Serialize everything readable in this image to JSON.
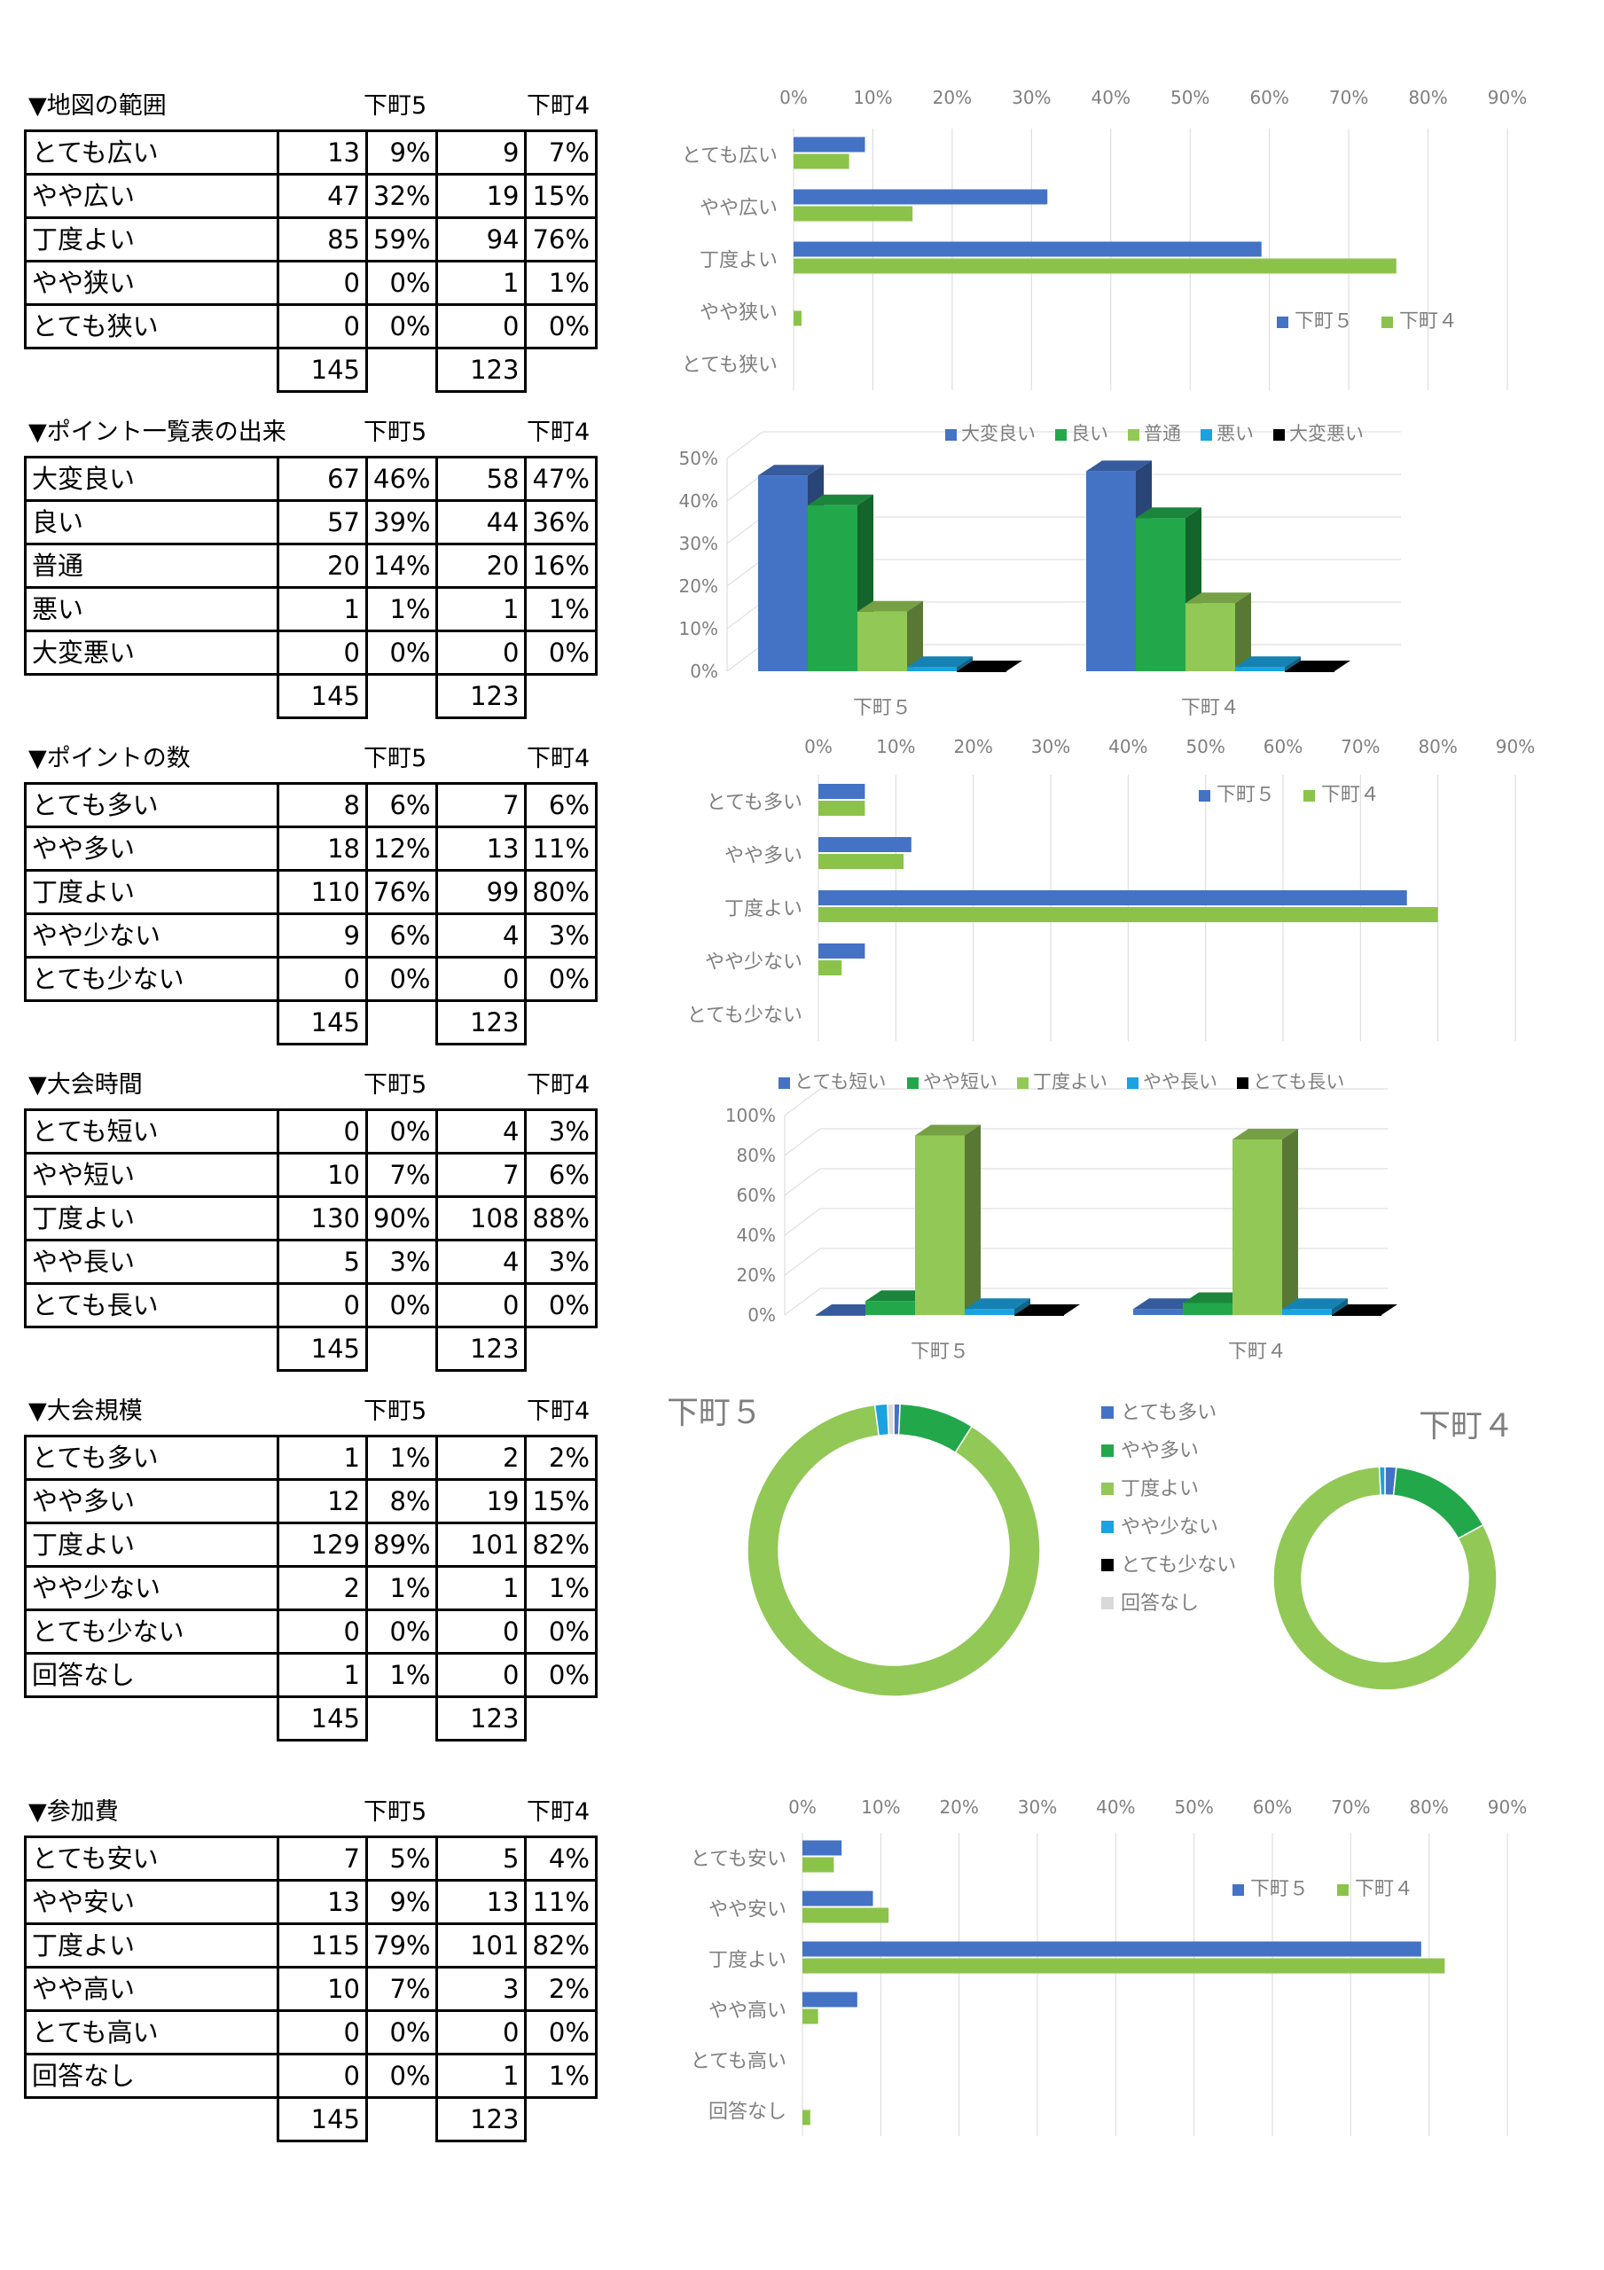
{
  "colors": {
    "s5": "#4472c4",
    "s4": "#8bc34a",
    "dg": "#22a84a",
    "lg": "#92c856",
    "cy": "#1aa3e0",
    "bk": "#000000",
    "lb": "#5b9bd5",
    "ltgray": "#d9d9d9",
    "grid": "#d9d9d9"
  },
  "sections": [
    {
      "title": "▼地図の範囲",
      "col1": "下町5",
      "col2": "下町4",
      "rows": [
        {
          "label": "とても広い",
          "n1": "13",
          "p1": "9%",
          "n2": "9",
          "p2": "7%"
        },
        {
          "label": "やや広い",
          "n1": "47",
          "p1": "32%",
          "n2": "19",
          "p2": "15%"
        },
        {
          "label": "丁度よい",
          "n1": "85",
          "p1": "59%",
          "n2": "94",
          "p2": "76%"
        },
        {
          "label": "やや狭い",
          "n1": "0",
          "p1": "0%",
          "n2": "1",
          "p2": "1%"
        },
        {
          "label": "とても狭い",
          "n1": "0",
          "p1": "0%",
          "n2": "0",
          "p2": "0%"
        }
      ],
      "total1": "145",
      "total2": "123"
    },
    {
      "title": "▼ポイント一覧表の出来",
      "col1": "下町5",
      "col2": "下町4",
      "rows": [
        {
          "label": "大変良い",
          "n1": "67",
          "p1": "46%",
          "n2": "58",
          "p2": "47%"
        },
        {
          "label": "良い",
          "n1": "57",
          "p1": "39%",
          "n2": "44",
          "p2": "36%"
        },
        {
          "label": "普通",
          "n1": "20",
          "p1": "14%",
          "n2": "20",
          "p2": "16%"
        },
        {
          "label": "悪い",
          "n1": "1",
          "p1": "1%",
          "n2": "1",
          "p2": "1%"
        },
        {
          "label": "大変悪い",
          "n1": "0",
          "p1": "0%",
          "n2": "0",
          "p2": "0%"
        }
      ],
      "total1": "145",
      "total2": "123"
    },
    {
      "title": "▼ポイントの数",
      "col1": "下町5",
      "col2": "下町4",
      "rows": [
        {
          "label": "とても多い",
          "n1": "8",
          "p1": "6%",
          "n2": "7",
          "p2": "6%"
        },
        {
          "label": "やや多い",
          "n1": "18",
          "p1": "12%",
          "n2": "13",
          "p2": "11%"
        },
        {
          "label": "丁度よい",
          "n1": "110",
          "p1": "76%",
          "n2": "99",
          "p2": "80%"
        },
        {
          "label": "やや少ない",
          "n1": "9",
          "p1": "6%",
          "n2": "4",
          "p2": "3%"
        },
        {
          "label": "とても少ない",
          "n1": "0",
          "p1": "0%",
          "n2": "0",
          "p2": "0%"
        }
      ],
      "total1": "145",
      "total2": "123"
    },
    {
      "title": "▼大会時間",
      "col1": "下町5",
      "col2": "下町4",
      "rows": [
        {
          "label": "とても短い",
          "n1": "0",
          "p1": "0%",
          "n2": "4",
          "p2": "3%"
        },
        {
          "label": "やや短い",
          "n1": "10",
          "p1": "7%",
          "n2": "7",
          "p2": "6%"
        },
        {
          "label": "丁度よい",
          "n1": "130",
          "p1": "90%",
          "n2": "108",
          "p2": "88%"
        },
        {
          "label": "やや長い",
          "n1": "5",
          "p1": "3%",
          "n2": "4",
          "p2": "3%"
        },
        {
          "label": "とても長い",
          "n1": "0",
          "p1": "0%",
          "n2": "0",
          "p2": "0%"
        }
      ],
      "total1": "145",
      "total2": "123"
    },
    {
      "title": "▼大会規模",
      "col1": "下町5",
      "col2": "下町4",
      "rows": [
        {
          "label": "とても多い",
          "n1": "1",
          "p1": "1%",
          "n2": "2",
          "p2": "2%"
        },
        {
          "label": "やや多い",
          "n1": "12",
          "p1": "8%",
          "n2": "19",
          "p2": "15%"
        },
        {
          "label": "丁度よい",
          "n1": "129",
          "p1": "89%",
          "n2": "101",
          "p2": "82%"
        },
        {
          "label": "やや少ない",
          "n1": "2",
          "p1": "1%",
          "n2": "1",
          "p2": "1%"
        },
        {
          "label": "とても少ない",
          "n1": "0",
          "p1": "0%",
          "n2": "0",
          "p2": "0%"
        },
        {
          "label": "回答なし",
          "n1": "1",
          "p1": "1%",
          "n2": "0",
          "p2": "0%"
        }
      ],
      "total1": "145",
      "total2": "123"
    },
    {
      "title": "▼参加費",
      "col1": "下町5",
      "col2": "下町4",
      "rows": [
        {
          "label": "とても安い",
          "n1": "7",
          "p1": "5%",
          "n2": "5",
          "p2": "4%"
        },
        {
          "label": "やや安い",
          "n1": "13",
          "p1": "9%",
          "n2": "13",
          "p2": "11%"
        },
        {
          "label": "丁度よい",
          "n1": "115",
          "p1": "79%",
          "n2": "101",
          "p2": "82%"
        },
        {
          "label": "やや高い",
          "n1": "10",
          "p1": "7%",
          "n2": "3",
          "p2": "2%"
        },
        {
          "label": "とても高い",
          "n1": "0",
          "p1": "0%",
          "n2": "0",
          "p2": "0%"
        },
        {
          "label": "回答なし",
          "n1": "0",
          "p1": "0%",
          "n2": "1",
          "p2": "1%"
        }
      ],
      "total1": "145",
      "total2": "123"
    }
  ],
  "chart_data": [
    {
      "type": "bar",
      "orientation": "horizontal",
      "categories": [
        "とても広い",
        "やや広い",
        "丁度よい",
        "やや狭い",
        "とても狭い"
      ],
      "series": [
        {
          "name": "下町５",
          "values": [
            9,
            32,
            59,
            0,
            0
          ]
        },
        {
          "name": "下町４",
          "values": [
            7,
            15,
            76,
            1,
            0
          ]
        }
      ],
      "xticks": [
        "0%",
        "10%",
        "20%",
        "30%",
        "40%",
        "50%",
        "60%",
        "70%",
        "80%",
        "90%"
      ],
      "xlim": [
        0,
        90
      ],
      "legend": "right"
    },
    {
      "type": "bar",
      "orientation": "vertical-3d",
      "categories": [
        "下町５",
        "下町４"
      ],
      "series": [
        {
          "name": "大変良い",
          "values": [
            46,
            47
          ]
        },
        {
          "name": "良い",
          "values": [
            39,
            36
          ]
        },
        {
          "name": "普通",
          "values": [
            14,
            16
          ]
        },
        {
          "name": "悪い",
          "values": [
            1,
            1
          ]
        },
        {
          "name": "大変悪い",
          "values": [
            0,
            0
          ]
        }
      ],
      "yticks": [
        "50%",
        "40%",
        "30%",
        "20%",
        "10%",
        "0%"
      ],
      "ylim": [
        0,
        50
      ],
      "legend": "top"
    },
    {
      "type": "bar",
      "orientation": "horizontal",
      "categories": [
        "とても多い",
        "やや多い",
        "丁度よい",
        "やや少ない",
        "とても少ない"
      ],
      "series": [
        {
          "name": "下町５",
          "values": [
            6,
            12,
            76,
            6,
            0
          ]
        },
        {
          "name": "下町４",
          "values": [
            6,
            11,
            80,
            3,
            0
          ]
        }
      ],
      "xticks": [
        "0%",
        "10%",
        "20%",
        "30%",
        "40%",
        "50%",
        "60%",
        "70%",
        "80%",
        "90%"
      ],
      "xlim": [
        0,
        90
      ],
      "legend": "top-right"
    },
    {
      "type": "bar",
      "orientation": "vertical-3d",
      "categories": [
        "下町５",
        "下町４"
      ],
      "series": [
        {
          "name": "とても短い",
          "values": [
            0,
            3
          ]
        },
        {
          "name": "やや短い",
          "values": [
            7,
            6
          ]
        },
        {
          "name": "丁度よい",
          "values": [
            90,
            88
          ]
        },
        {
          "name": "やや長い",
          "values": [
            3,
            3
          ]
        },
        {
          "name": "とても長い",
          "values": [
            0,
            0
          ]
        }
      ],
      "yticks": [
        "100%",
        "80%",
        "60%",
        "40%",
        "20%",
        "0%"
      ],
      "ylim": [
        0,
        100
      ],
      "legend": "top"
    },
    {
      "type": "pie",
      "style": "doughnut",
      "titles": [
        "下町５",
        "下町４"
      ],
      "categories": [
        "とても多い",
        "やや多い",
        "丁度よい",
        "やや少ない",
        "とても少ない",
        "回答なし"
      ],
      "series": [
        {
          "name": "下町５",
          "values": [
            1,
            12,
            129,
            2,
            0,
            1
          ]
        },
        {
          "name": "下町４",
          "values": [
            2,
            19,
            101,
            1,
            0,
            0
          ]
        }
      ],
      "legend": "middle"
    },
    {
      "type": "bar",
      "orientation": "horizontal",
      "categories": [
        "とても安い",
        "やや安い",
        "丁度よい",
        "やや高い",
        "とても高い",
        "回答なし"
      ],
      "series": [
        {
          "name": "下町５",
          "values": [
            5,
            9,
            79,
            7,
            0,
            0
          ]
        },
        {
          "name": "下町４",
          "values": [
            4,
            11,
            82,
            2,
            0,
            1
          ]
        }
      ],
      "xticks": [
        "0%",
        "10%",
        "20%",
        "30%",
        "40%",
        "50%",
        "60%",
        "70%",
        "80%",
        "90%"
      ],
      "xlim": [
        0,
        90
      ],
      "legend": "top-right"
    }
  ]
}
